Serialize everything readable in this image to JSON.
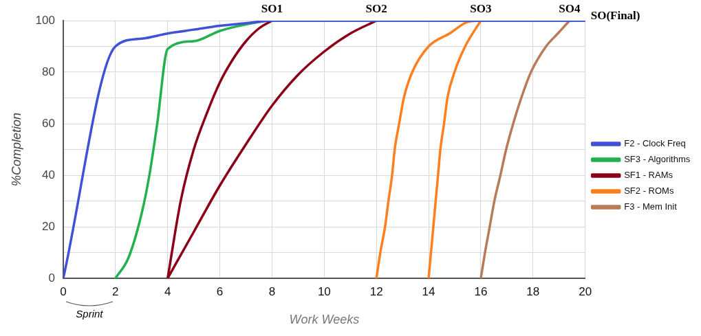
{
  "chart_data": {
    "type": "line",
    "xlabel": "Work Weeks",
    "ylabel": "%Completion",
    "xlim": [
      0,
      20
    ],
    "xticks": [
      0,
      2,
      4,
      6,
      8,
      10,
      12,
      14,
      16,
      18,
      20
    ],
    "ylim": [
      0,
      100
    ],
    "yticks": [
      0,
      {
        "value": 10,
        "label": null
      },
      20,
      {
        "value": 30,
        "label": null
      },
      40,
      {
        "value": 50,
        "label": null
      },
      60,
      {
        "value": 70,
        "label": null
      },
      80,
      {
        "value": 90,
        "label": null
      },
      100
    ],
    "grid": true,
    "legend": "right",
    "marker": "none",
    "line_style": "solid",
    "series": [
      {
        "name": "F2 - Clock Freq",
        "color": "#3f51d8",
        "x": [
          0,
          2,
          3,
          4,
          5,
          6,
          7,
          8,
          20
        ],
        "values": [
          0,
          90,
          93,
          95,
          96.5,
          98,
          99,
          100,
          100
        ]
      },
      {
        "name": "SF3 - Algorithms",
        "color": "#22b14c",
        "x": [
          2,
          2.5,
          3,
          3.3,
          3.6,
          4,
          5,
          6,
          7,
          8,
          20
        ],
        "values": [
          0,
          8,
          25,
          40,
          60,
          89,
          92,
          96,
          98.5,
          100,
          100
        ]
      },
      {
        "name": "SF1 - RAMs",
        "color": "#8b0016",
        "x": [
          4,
          4.5,
          5,
          5.5,
          6,
          6.5,
          7,
          7.5,
          8
        ],
        "values": [
          0,
          30,
          50,
          64,
          76,
          85,
          92,
          97,
          100
        ]
      },
      {
        "color": "#8b0016",
        "x": [
          4,
          5,
          6,
          7,
          8,
          9,
          10,
          11,
          12
        ],
        "values": [
          0,
          18,
          36,
          52,
          67,
          79,
          88,
          95,
          100
        ]
      },
      {
        "name": "SF2 - ROMs",
        "color": "#ff7f1e",
        "x": [
          12,
          12.15,
          12.33,
          12.46,
          12.6,
          12.7,
          12.87,
          13.05,
          13.37,
          14,
          14.8,
          15.5,
          16
        ],
        "values": [
          0,
          10,
          20,
          30,
          40,
          50,
          60,
          70,
          80,
          90,
          95,
          99.5,
          100
        ]
      },
      {
        "color": "#ff7f1e",
        "x": [
          14,
          14.09,
          14.18,
          14.27,
          14.36,
          14.45,
          14.59,
          14.72,
          14.99,
          15.4,
          16
        ],
        "values": [
          0,
          10,
          20,
          30,
          40,
          50,
          60,
          70,
          80,
          90,
          100
        ]
      },
      {
        "name": "F3 - Mem Init",
        "color": "#b97a57",
        "x": [
          16,
          16.16,
          16.34,
          16.52,
          16.75,
          16.97,
          17.24,
          17.55,
          17.92,
          18.5,
          18.95,
          19.4
        ],
        "values": [
          0,
          10,
          20,
          30,
          40,
          50,
          60,
          70,
          80,
          90,
          95,
          100
        ]
      }
    ],
    "annotations": [
      {
        "text": "SO1",
        "x": 8,
        "y": 100
      },
      {
        "text": "SO2",
        "x": 12,
        "y": 100
      },
      {
        "text": "SO3",
        "x": 16,
        "y": 100
      },
      {
        "text": "SO4",
        "x": 19.4,
        "y": 100
      },
      "SO(Final)",
      "Sprint"
    ]
  }
}
